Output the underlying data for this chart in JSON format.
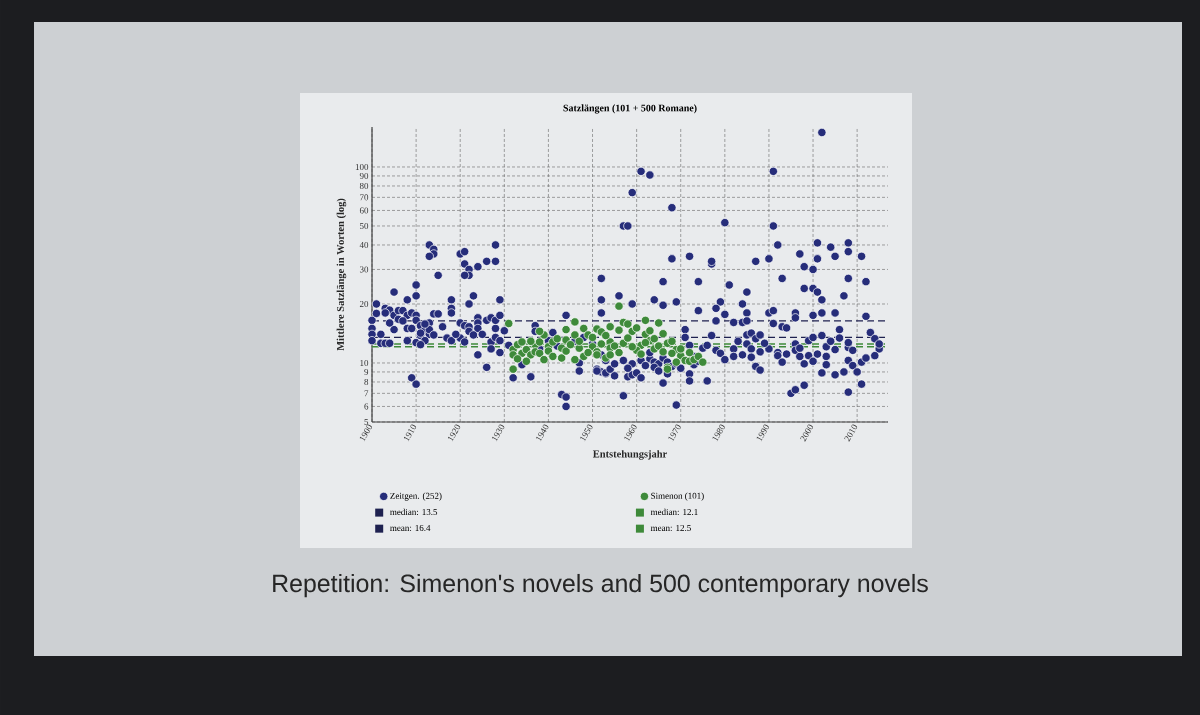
{
  "chart_data": {
    "type": "scatter",
    "title": "Satzlängen (101 + 500 Romane)",
    "xlabel": "Entstehungsjahr",
    "ylabel": "Mittlere Satzlänge in Worten (log)",
    "annotations": [
      "Repetition: Simenon's novels and 500 contemporary novels"
    ],
    "xlim": [
      1900,
      2017
    ],
    "ylim": [
      5,
      160
    ],
    "xticks": [
      1900,
      1910,
      1920,
      1930,
      1940,
      1950,
      1960,
      1970,
      1980,
      1990,
      2000,
      2010
    ],
    "yticks": [
      5,
      6,
      7,
      8,
      9,
      10,
      20,
      30,
      40,
      50,
      60,
      70,
      80,
      90,
      100
    ],
    "log": true,
    "grid": true,
    "legend": "bottom",
    "marker": "circle",
    "series": [
      {
        "name": "Zeitgen. (252)",
        "color": "#262d7a",
        "x": [
          1901,
          1905,
          1908,
          1910,
          1910,
          1913,
          1914,
          1914,
          1913,
          1915,
          1918,
          1918,
          1918,
          1920,
          1921,
          1921,
          1922,
          1922,
          1921,
          1924,
          1926,
          1928,
          1928,
          1923,
          1922,
          1929,
          1900,
          1900,
          1900,
          1900,
          1902,
          1903,
          1904,
          1902,
          1903,
          1904,
          1905,
          1906,
          1906,
          1905,
          1907,
          1908,
          1909,
          1910,
          1910,
          1908,
          1909,
          1908,
          1910,
          1911,
          1912,
          1913,
          1913,
          1911,
          1912,
          1911,
          1913,
          1914,
          1915,
          1917,
          1918,
          1909,
          1910,
          1920,
          1921,
          1920,
          1921,
          1922,
          1922,
          1924,
          1924,
          1924,
          1924,
          1925,
          1926,
          1927,
          1926,
          1927,
          1927,
          1928,
          1928,
          1929,
          1928,
          1929,
          1929,
          1931,
          1932,
          1936,
          1934,
          1937,
          1937,
          1940,
          1941,
          1944,
          1943,
          1944,
          1944,
          1947,
          1947,
          1948,
          1950,
          1952,
          1951,
          1952,
          1953,
          2002,
          1961,
          1963,
          1959,
          1968,
          1957,
          1958,
          1991,
          1980,
          1991,
          1992,
          2001,
          2004,
          2008,
          2008,
          2011,
          2005,
          2001,
          1997,
          1998,
          2000,
          1990,
          1987,
          1977,
          1977,
          1972,
          1968,
          1952,
          1966,
          1974,
          1981,
          1985,
          1993,
          1998,
          2000,
          2001,
          2002,
          2008,
          2012,
          2007,
          1952,
          1956,
          1959,
          1964,
          1966,
          1969,
          1979,
          1978,
          1984,
          1985,
          1974,
          1990,
          1991,
          1996,
          2000,
          2002,
          2005,
          1951,
          1953,
          1954,
          1952,
          1955,
          1957,
          1957,
          1958,
          1959,
          1960,
          1959,
          1961,
          1963,
          1964,
          1965,
          1963,
          1964,
          1966,
          1967,
          1968,
          1969,
          1966,
          1969,
          1971,
          1971,
          1972,
          1973,
          1973,
          1972,
          1972,
          1975,
          1976,
          1977,
          1976,
          1978,
          1979,
          1978,
          1980,
          1982,
          1982,
          1984,
          1982,
          1984,
          1985,
          1985,
          1986,
          1987,
          1988,
          1985,
          1986,
          1988,
          1986,
          1987,
          1988,
          1990,
          1992,
          1992,
          1993,
          1991,
          1993,
          1994,
          1996,
          1996,
          1996,
          1997,
          1997,
          1998,
          1999,
          1999,
          2000,
          1995,
          1996,
          1998,
          2000,
          2002,
          2003,
          2003,
          2003,
          2004,
          2005,
          2002,
          2005,
          2006,
          2006,
          2008,
          2008,
          2009,
          2008,
          2009,
          2010,
          2011,
          2008,
          2011,
          2012,
          2013,
          2014,
          2015,
          2015,
          2014,
          1901,
          1903,
          1904,
          1907,
          1911,
          1912,
          1914,
          1916,
          1919,
          1923,
          1930,
          1938,
          1942,
          1946,
          1953,
          1955,
          1958,
          1961,
          1962,
          1965,
          1967,
          1970,
          1974,
          1980,
          1983,
          1989,
          1994,
          2001,
          2007,
          2012
        ],
        "values": [
          20,
          23,
          21,
          22,
          25,
          40,
          38,
          36,
          35,
          28,
          21,
          19,
          18,
          36,
          37,
          32,
          30,
          28,
          28,
          31,
          33,
          33,
          40,
          22,
          20,
          21,
          16.5,
          15,
          14,
          13,
          12.6,
          12.6,
          12.6,
          14,
          19,
          18.6,
          17.5,
          18.5,
          16.7,
          14.8,
          18.5,
          17.5,
          18,
          17.5,
          16.5,
          15,
          15,
          13,
          12.7,
          15.5,
          14.7,
          16,
          14,
          13.8,
          13,
          12.4,
          14.8,
          17.8,
          17.8,
          13.4,
          13,
          8.4,
          7.8,
          16,
          15.5,
          13.4,
          12.8,
          15.3,
          14.5,
          17,
          16,
          11,
          15,
          14,
          16.5,
          17,
          9.5,
          12.8,
          11.8,
          15,
          16.5,
          17.5,
          13.5,
          13,
          11.3,
          12.3,
          8.4,
          8.5,
          9.8,
          15.5,
          14.5,
          13,
          14.3,
          17.5,
          6.9,
          6.7,
          6,
          10,
          9.1,
          13.5,
          12.5,
          18,
          9.3,
          9,
          8.8,
          150,
          95,
          91,
          74,
          62,
          50,
          50,
          95,
          52,
          50,
          40,
          41,
          39,
          41,
          37,
          35,
          35,
          34,
          36,
          31,
          30,
          34,
          33,
          32,
          33,
          35,
          34,
          27,
          26,
          26,
          25,
          23,
          27,
          24,
          24,
          23,
          21,
          27,
          26,
          22,
          21,
          22,
          20,
          21,
          19.7,
          20.5,
          20.5,
          19,
          20,
          18,
          18.5,
          18,
          18.5,
          18,
          17.5,
          18,
          18,
          9.1,
          8.9,
          9.3,
          11,
          9.9,
          10.3,
          6.8,
          8.5,
          8.7,
          8.9,
          9.9,
          10.3,
          10.5,
          10.1,
          9.9,
          11.3,
          9.5,
          10.6,
          10.1,
          9.6,
          9.9,
          7.9,
          6.1,
          14.8,
          13.5,
          12.3,
          10.8,
          9.8,
          8.8,
          8.1,
          11.9,
          12.3,
          13.8,
          8.1,
          11.6,
          11.2,
          16.4,
          17.7,
          11.8,
          10.8,
          11,
          16.1,
          16.1,
          16.4,
          13.9,
          14.2,
          13.3,
          13.9,
          12.5,
          11.8,
          11.4,
          10.7,
          9.6,
          9.2,
          11.8,
          11.3,
          10.9,
          10.1,
          15.9,
          15.3,
          15.1,
          17,
          12.5,
          11.6,
          10.8,
          11.9,
          9.9,
          10.9,
          13,
          10.2,
          7,
          7.3,
          7.7,
          13.5,
          13.8,
          12.1,
          10.8,
          9.8,
          12.9,
          11.7,
          8.9,
          8.7,
          14.8,
          13.4,
          12,
          12.7,
          11.6,
          10.3,
          9.7,
          9,
          10.1,
          7.1,
          7.8,
          17.3,
          14.3,
          13.3,
          11.8,
          12.5,
          10.9,
          17.9,
          18,
          16,
          16.4,
          14.2,
          15.8,
          13.9,
          15.3,
          14,
          13.9,
          14.6,
          11.8,
          12.2,
          12.9,
          10.3,
          8.6,
          9.4,
          8.4,
          9.7,
          9.1,
          8.8,
          9.4,
          10.2,
          10.4,
          12.9,
          12.6,
          11.1,
          11.1,
          9,
          10.6
        ]
      },
      {
        "name": "Simenon (101)",
        "color": "#3e8a3a",
        "x": [
          1931,
          1932,
          1932,
          1933,
          1934,
          1935,
          1936,
          1937,
          1937,
          1938,
          1939,
          1940,
          1941,
          1943,
          1943,
          1944,
          1946,
          1946,
          1947,
          1948,
          1948,
          1949,
          1950,
          1951,
          1953,
          1954,
          1932,
          1956,
          1951,
          1952,
          1954,
          1956,
          1957,
          1959,
          1960,
          1962,
          1963,
          1965,
          1966,
          1967,
          1969,
          1970,
          1971,
          1972,
          1973,
          1967,
          1967,
          1968,
          1961,
          1963,
          1957,
          1954,
          1951,
          1960,
          1954,
          1964,
          1933,
          1934,
          1935,
          1936,
          1938,
          1939,
          1940,
          1941,
          1942,
          1944,
          1945,
          1946,
          1947,
          1949,
          1950,
          1952,
          1953,
          1955,
          1956,
          1958,
          1959,
          1961,
          1962,
          1964,
          1965,
          1966,
          1968,
          1969,
          1970,
          1972,
          1974,
          1975,
          1958,
          1962,
          1944,
          1938
        ],
        "values": [
          15.9,
          11.7,
          11,
          12.4,
          11.2,
          11.7,
          11,
          12.4,
          11.4,
          12.8,
          13.9,
          12.1,
          12.8,
          11.9,
          10.6,
          13.1,
          13.9,
          16.2,
          11.9,
          15,
          10.8,
          13.9,
          12.1,
          11.4,
          10.6,
          12.8,
          9.3,
          19.5,
          14.9,
          14.4,
          15.3,
          14.7,
          16.1,
          14.5,
          15.1,
          14,
          14.6,
          16,
          14.1,
          12.6,
          11.7,
          10.9,
          10.3,
          10.2,
          10.4,
          9.5,
          9.3,
          11.2,
          12.3,
          13,
          12.6,
          11.9,
          11,
          11.6,
          11,
          11.8,
          10.5,
          12.8,
          10.2,
          12.9,
          11.2,
          10.4,
          11.5,
          10.8,
          13.3,
          11.5,
          12.4,
          10.4,
          12.9,
          11.3,
          13.5,
          12.5,
          13.8,
          12.2,
          11.3,
          13.4,
          12.1,
          11.1,
          12.7,
          13.3,
          12.2,
          11.4,
          12.9,
          10.1,
          11.8,
          11.3,
          10.8,
          10.1,
          15.8,
          16.5,
          14.8,
          14.5
        ]
      }
    ],
    "ref_lines": [
      {
        "axis": "y",
        "value": 13.5,
        "label": "median: 13.5",
        "color": "#1e2150",
        "line_style": "dashed"
      },
      {
        "axis": "y",
        "value": 12.1,
        "label": "median: 12.1",
        "color": "#3e8a3a",
        "line_style": "dashed"
      },
      {
        "axis": "y",
        "value": 16.4,
        "label": "mean: 16.4",
        "color": "#1e2150",
        "line_style": "dashed"
      },
      {
        "axis": "y",
        "value": 12.5,
        "label": "mean: 12.5",
        "color": "#3e8a3a",
        "line_style": "dashed"
      }
    ]
  }
}
